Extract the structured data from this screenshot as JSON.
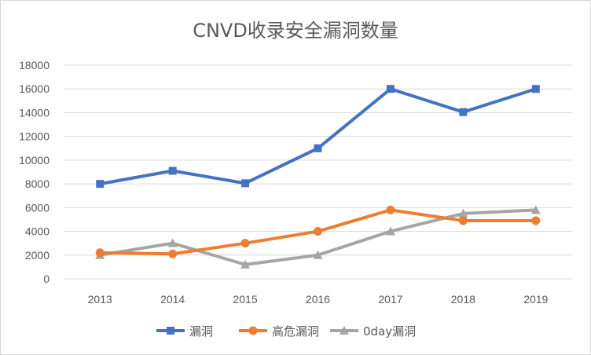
{
  "chart_data": {
    "type": "line",
    "title": "CNVD收录安全漏洞数量",
    "xlabel": "",
    "ylabel": "",
    "categories": [
      "2013",
      "2014",
      "2015",
      "2016",
      "2017",
      "2018",
      "2019"
    ],
    "ylim": [
      0,
      18000
    ],
    "yticks": [
      0,
      2000,
      4000,
      6000,
      8000,
      10000,
      12000,
      14000,
      16000,
      18000
    ],
    "grid": true,
    "legend_position": "bottom",
    "series": [
      {
        "name": "漏洞",
        "color": "#4472c4",
        "marker": "square",
        "values": [
          8000,
          9100,
          8050,
          11000,
          16000,
          14050,
          16000
        ]
      },
      {
        "name": "高危漏洞",
        "color": "#ed7d31",
        "marker": "circle",
        "values": [
          2200,
          2100,
          3000,
          4000,
          5800,
          4900,
          4900
        ]
      },
      {
        "name": "0day漏洞",
        "color": "#a5a5a5",
        "marker": "triangle",
        "values": [
          2000,
          3000,
          1200,
          2000,
          4000,
          5500,
          5800
        ]
      }
    ]
  }
}
